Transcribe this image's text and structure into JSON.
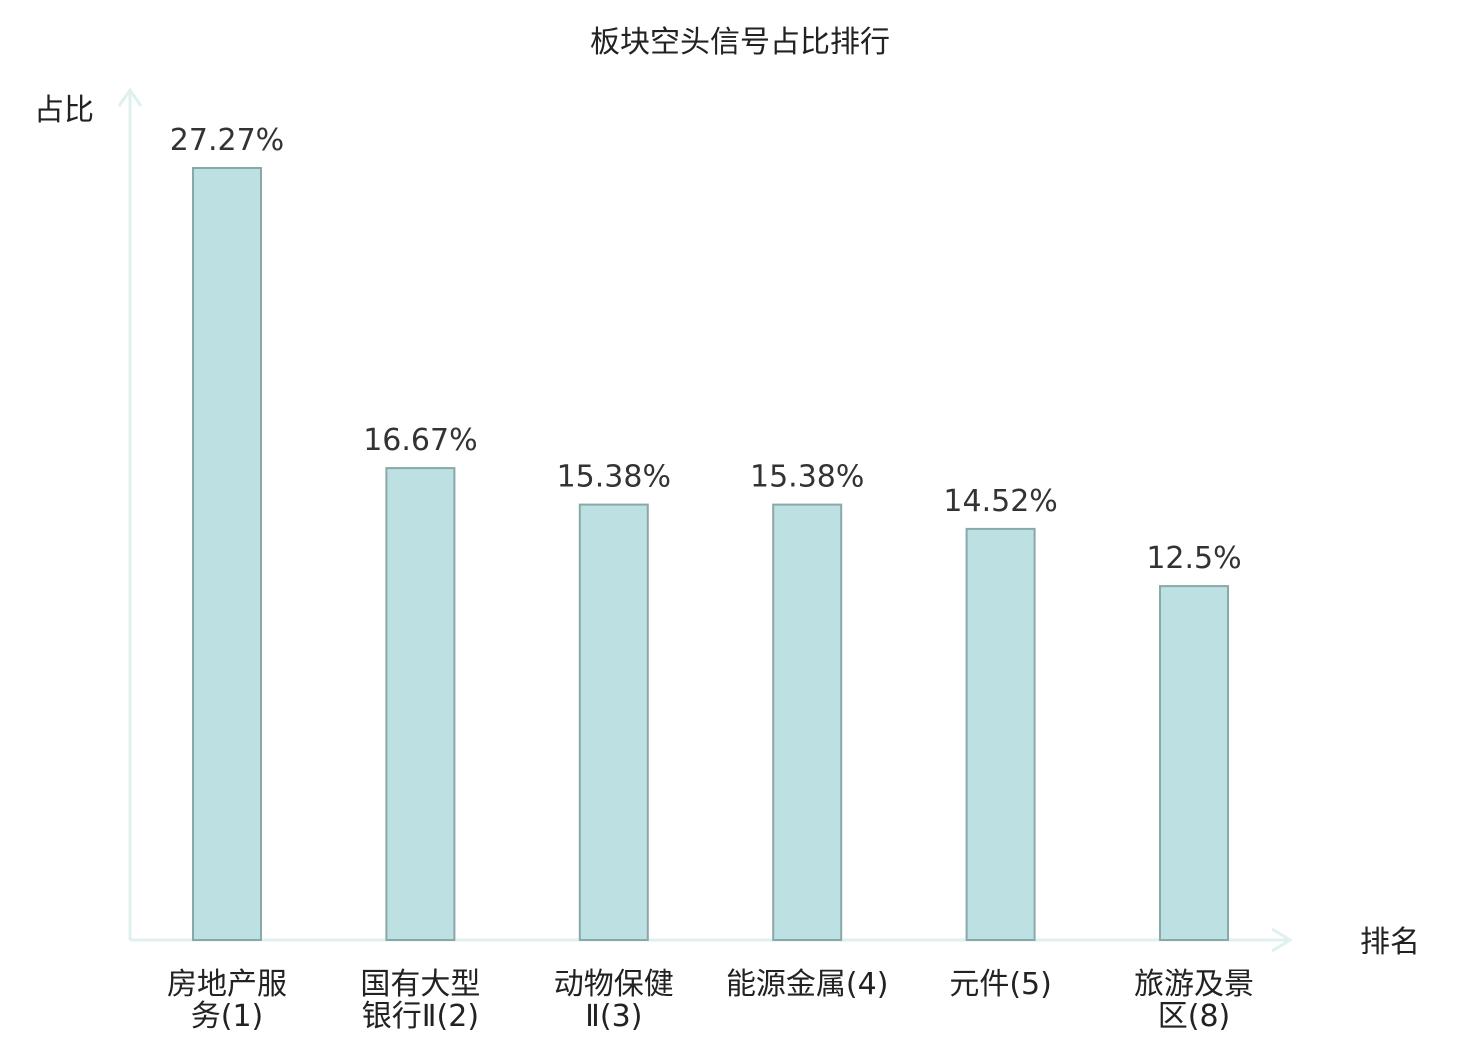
{
  "chart_data": {
    "type": "bar",
    "title": "板块空头信号占比排行",
    "ylabel": "占比",
    "xlabel": "排名",
    "categories": [
      {
        "lines": [
          "房地产服",
          "务(1)"
        ],
        "highlight": false
      },
      {
        "lines": [
          "国有大型",
          "银行Ⅱ(2)"
        ],
        "highlight": false
      },
      {
        "lines": [
          "动物保健",
          "Ⅱ(3)"
        ],
        "highlight": false
      },
      {
        "lines": [
          "能源金属(4)"
        ],
        "highlight": false
      },
      {
        "lines": [
          "元件(5)"
        ],
        "highlight": false
      },
      {
        "lines": [
          "旅游及景",
          "区(8)"
        ],
        "highlight": true
      }
    ],
    "values": [
      27.27,
      16.67,
      15.38,
      15.38,
      14.52,
      12.5
    ],
    "value_labels": [
      "27.27%",
      "16.67%",
      "15.38%",
      "15.38%",
      "14.52%",
      "12.5%"
    ],
    "ylim": [
      0,
      30
    ],
    "grid": false,
    "legend": "none",
    "colors": {
      "bar_fill": "#bde0e3",
      "bar_stroke": "#8aa8a8",
      "axis": "#dff1ef",
      "text": "#222222",
      "highlight_text": "#e00000"
    }
  }
}
